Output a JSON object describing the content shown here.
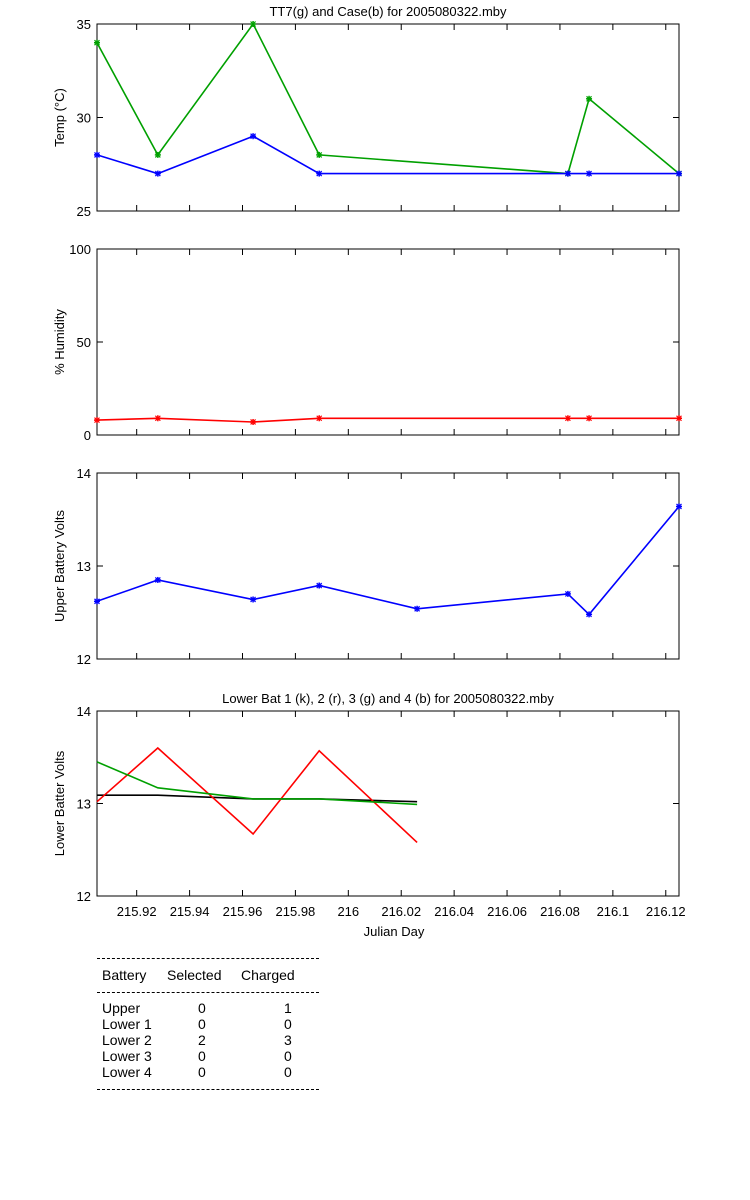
{
  "chart_data": [
    {
      "type": "line",
      "title": "TT7(g) and Case(b) for 2005080322.mby",
      "xlabel": "",
      "ylabel": "Temp  (°C)",
      "xlim": [
        215.905,
        216.125
      ],
      "ylim": [
        25,
        35
      ],
      "yticks": [
        25,
        30,
        35
      ],
      "series": [
        {
          "color": "#00a000",
          "x": [
            215.905,
            215.928,
            215.964,
            215.989,
            216.083,
            216.091,
            216.125
          ],
          "y": [
            34,
            28,
            35,
            28,
            27,
            31,
            27
          ]
        },
        {
          "color": "#0000ff",
          "x": [
            215.905,
            215.928,
            215.964,
            215.989,
            216.083,
            216.091,
            216.125
          ],
          "y": [
            28,
            27,
            29,
            27,
            27,
            27,
            27
          ]
        }
      ]
    },
    {
      "type": "line",
      "title": "",
      "xlabel": "",
      "ylabel": "% Humidity",
      "xlim": [
        215.905,
        216.125
      ],
      "ylim": [
        0,
        100
      ],
      "yticks": [
        0,
        50,
        100
      ],
      "series": [
        {
          "color": "#ff0000",
          "x": [
            215.905,
            215.928,
            215.964,
            215.989,
            216.083,
            216.091,
            216.125
          ],
          "y": [
            8,
            9,
            7,
            9,
            9,
            9,
            9
          ]
        }
      ]
    },
    {
      "type": "line",
      "title": "",
      "xlabel": "",
      "ylabel": "Upper Battery Volts",
      "xlim": [
        215.905,
        216.125
      ],
      "ylim": [
        12,
        14
      ],
      "yticks": [
        12,
        13,
        14
      ],
      "series": [
        {
          "color": "#0000ff",
          "x": [
            215.905,
            215.928,
            215.964,
            215.989,
            216.026,
            216.083,
            216.091,
            216.125
          ],
          "y": [
            12.62,
            12.85,
            12.64,
            12.79,
            12.54,
            12.7,
            12.48,
            13.64
          ]
        }
      ]
    },
    {
      "type": "line",
      "title": "Lower Bat 1 (k), 2 (r), 3 (g) and 4 (b) for 2005080322.mby",
      "xlabel": "Julian Day",
      "ylabel": "Lower Batter Volts",
      "xlim": [
        215.905,
        216.125
      ],
      "ylim": [
        12,
        14
      ],
      "yticks": [
        12,
        13,
        14
      ],
      "xticks": [
        215.92,
        215.94,
        215.96,
        215.98,
        216,
        216.02,
        216.04,
        216.06,
        216.08,
        216.1,
        216.12
      ],
      "xticklabels": [
        "215.92",
        "215.94",
        "215.96",
        "215.98",
        "216",
        "216.02",
        "216.04",
        "216.06",
        "216.08",
        "216.1",
        "216.12"
      ],
      "series": [
        {
          "color": "#000000",
          "x": [
            215.905,
            215.928,
            215.964,
            215.989,
            216.026
          ],
          "y": [
            13.09,
            13.09,
            13.05,
            13.05,
            13.02
          ]
        },
        {
          "color": "#ff0000",
          "x": [
            215.905,
            215.928,
            215.964,
            215.989,
            216.026
          ],
          "y": [
            13.02,
            13.6,
            12.67,
            13.57,
            12.58
          ]
        },
        {
          "color": "#00a000",
          "x": [
            215.905,
            215.928,
            215.964,
            215.989,
            216.026
          ],
          "y": [
            13.45,
            13.17,
            13.05,
            13.05,
            12.99
          ]
        }
      ]
    }
  ],
  "battery_table": {
    "headers": [
      "Battery",
      "Selected",
      "Charged"
    ],
    "rows": [
      [
        "Upper",
        "0",
        "1"
      ],
      [
        "Lower 1",
        "0",
        "0"
      ],
      [
        "Lower 2",
        "2",
        "3"
      ],
      [
        "Lower 3",
        "0",
        "0"
      ],
      [
        "Lower 4",
        "0",
        "0"
      ]
    ]
  }
}
